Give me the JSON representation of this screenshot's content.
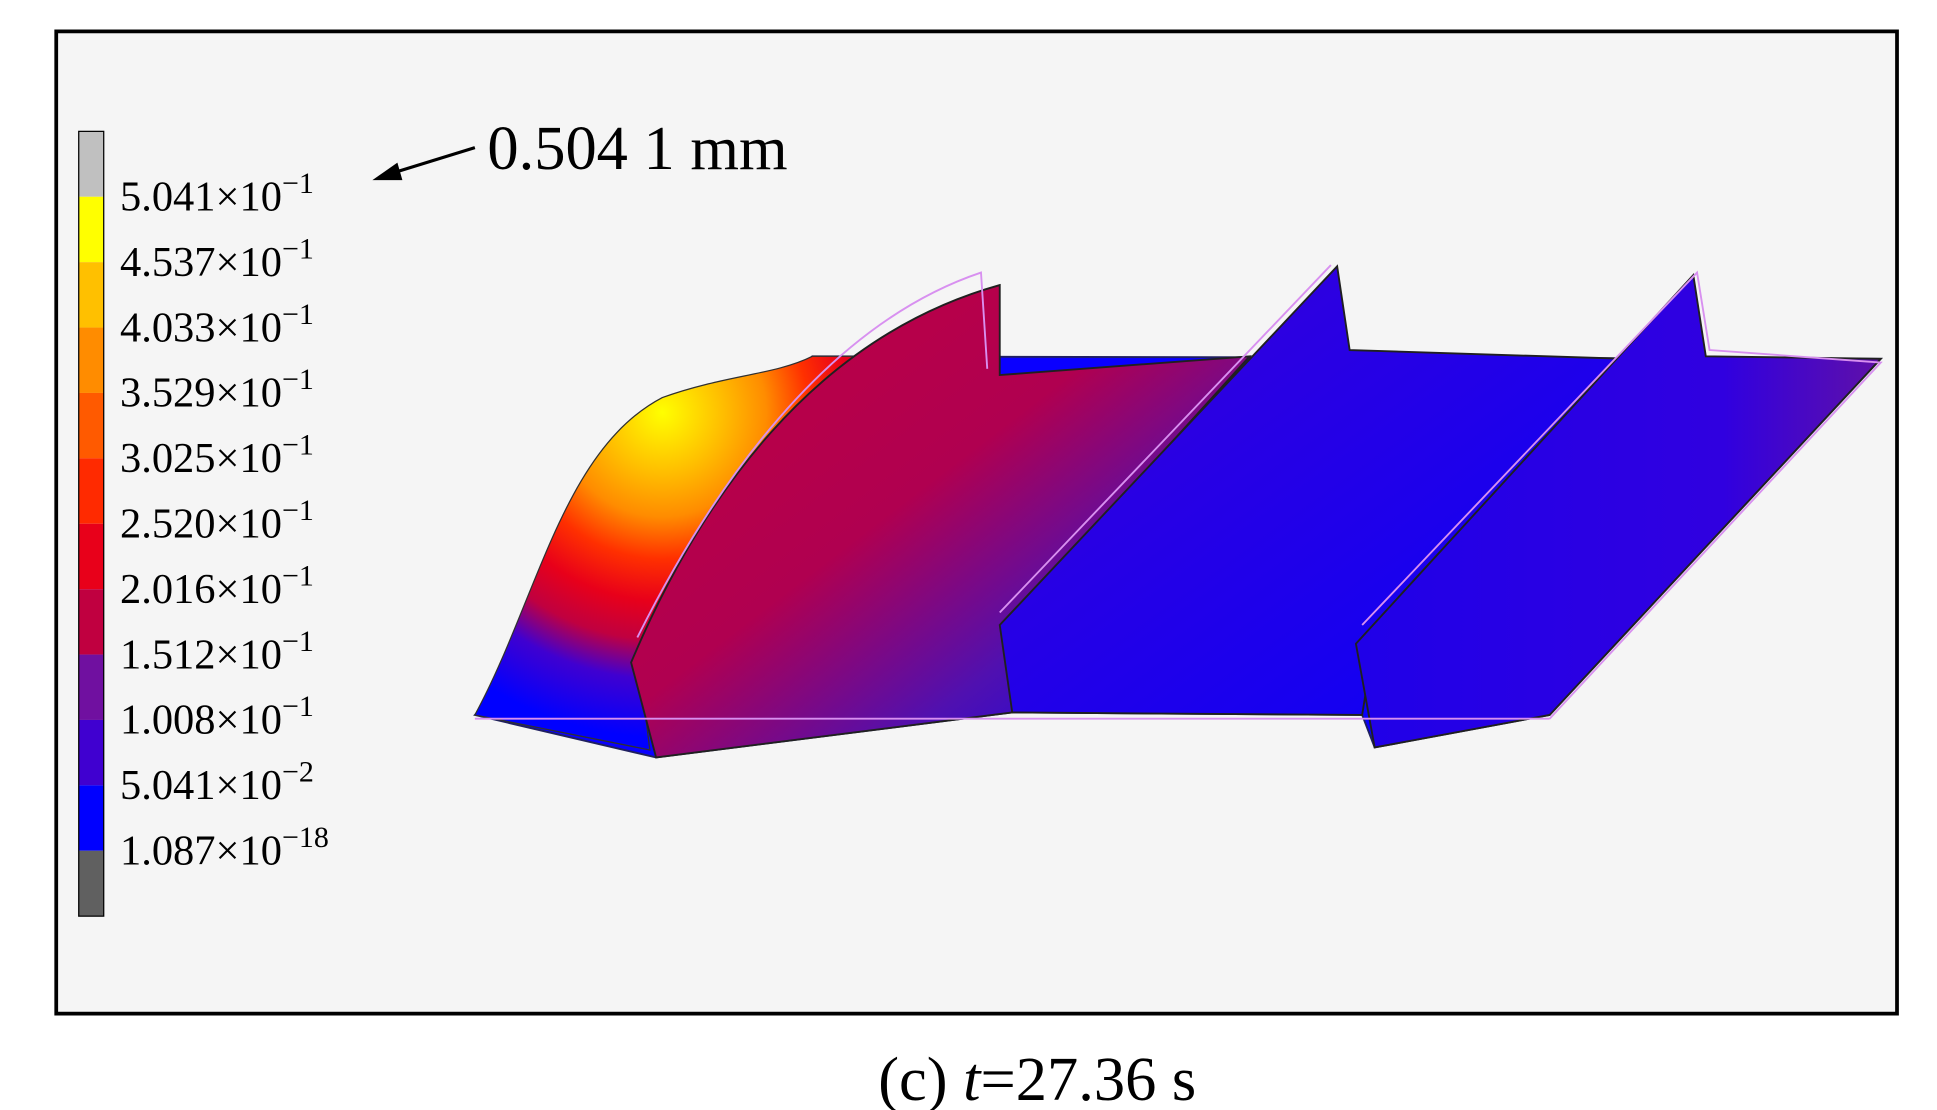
{
  "legend": {
    "colors": [
      "#c0c0c0",
      "#ffff00",
      "#ffc000",
      "#ff8c00",
      "#ff5a00",
      "#ff2a00",
      "#e8001a",
      "#c00040",
      "#7010a0",
      "#4000d0",
      "#0000ff",
      "#606060"
    ],
    "labels": [
      {
        "coefficient": "5.041",
        "times": "×10",
        "exponent": "−1"
      },
      {
        "coefficient": "4.537",
        "times": "×10",
        "exponent": "−1"
      },
      {
        "coefficient": "4.033",
        "times": "×10",
        "exponent": "−1"
      },
      {
        "coefficient": "3.529",
        "times": "×10",
        "exponent": "−1"
      },
      {
        "coefficient": "3.025",
        "times": "×10",
        "exponent": "−1"
      },
      {
        "coefficient": "2.520",
        "times": "×10",
        "exponent": "−1"
      },
      {
        "coefficient": "2.016",
        "times": "×10",
        "exponent": "−1"
      },
      {
        "coefficient": "1.512",
        "times": "×10",
        "exponent": "−1"
      },
      {
        "coefficient": "1.008",
        "times": "×10",
        "exponent": "−1"
      },
      {
        "coefficient": "5.041",
        "times": "×10",
        "exponent": "−2"
      },
      {
        "coefficient": "1.087",
        "times": "×10",
        "exponent": "−18"
      }
    ]
  },
  "annotation": "0.504 1 mm",
  "caption": {
    "label": "(c) ",
    "variable": "t",
    "value": "=27.36 s"
  }
}
